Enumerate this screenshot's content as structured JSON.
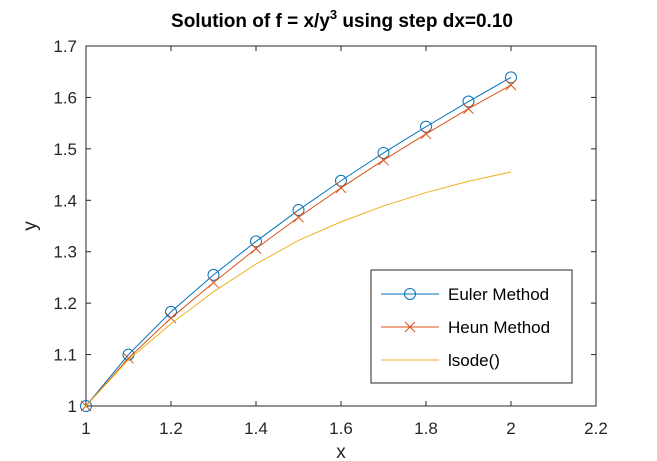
{
  "chart_data": {
    "type": "line",
    "title": "Solution of f = x/y",
    "title_superscript": "3",
    "title_suffix": " using step dx=0.10",
    "xlabel": "x",
    "ylabel": "y",
    "xlim": [
      1,
      2.2
    ],
    "ylim": [
      1,
      1.7
    ],
    "xticks": [
      1,
      1.2,
      1.4,
      1.6,
      1.8,
      2,
      2.2
    ],
    "xtick_labels": [
      "1",
      "1.2",
      "1.4",
      "1.6",
      "1.8",
      "2",
      "2.2"
    ],
    "yticks": [
      1,
      1.1,
      1.2,
      1.3,
      1.4,
      1.5,
      1.6,
      1.7
    ],
    "ytick_labels": [
      "1",
      "1.1",
      "1.2",
      "1.3",
      "1.4",
      "1.5",
      "1.6",
      "1.7"
    ],
    "grid": false,
    "legend_position": "bottom-right",
    "x": [
      1.0,
      1.1,
      1.2,
      1.3,
      1.4,
      1.5,
      1.6,
      1.7,
      1.8,
      1.9,
      2.0
    ],
    "series": [
      {
        "name": "Euler Method",
        "color": "#0072BD",
        "marker": "circle",
        "values": [
          1.0,
          1.1,
          1.183,
          1.255,
          1.32,
          1.381,
          1.438,
          1.492,
          1.543,
          1.592,
          1.639
        ]
      },
      {
        "name": "Heun Method",
        "color": "#D95319",
        "marker": "x",
        "values": [
          1.0,
          1.093,
          1.171,
          1.24,
          1.306,
          1.367,
          1.424,
          1.478,
          1.529,
          1.578,
          1.624
        ]
      },
      {
        "name": "lsode()",
        "color": "#EDB120",
        "marker": "none",
        "values": [
          1.0,
          1.09,
          1.16,
          1.222,
          1.276,
          1.322,
          1.358,
          1.389,
          1.415,
          1.437,
          1.455
        ]
      }
    ]
  }
}
